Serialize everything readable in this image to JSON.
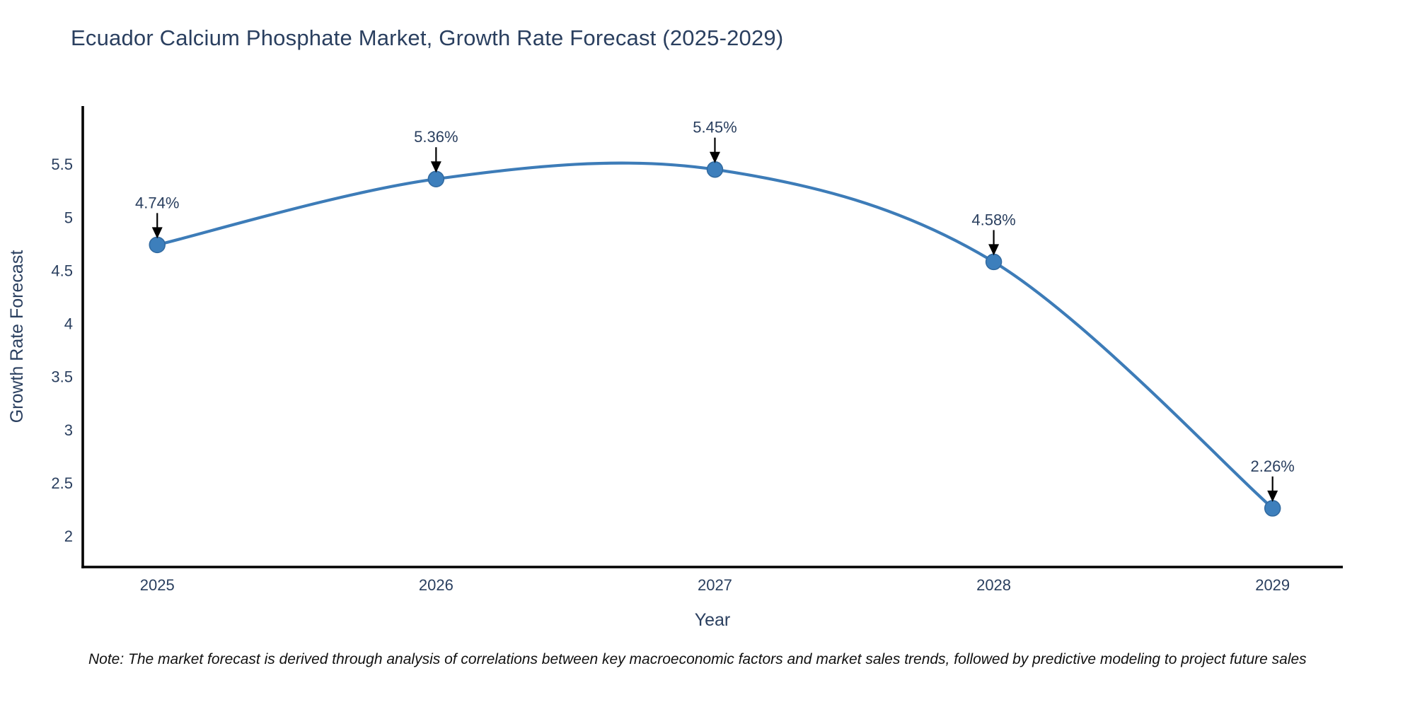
{
  "header": {
    "title": "Ecuador Calcium Phosphate Market, Growth Rate Forecast (2025-2029)"
  },
  "chart_data": {
    "type": "line",
    "title": "Ecuador Calcium Phosphate Market, Growth Rate Forecast (2025-2029)",
    "xlabel": "Year",
    "ylabel": "Growth Rate Forecast",
    "x": [
      2025,
      2026,
      2027,
      2028,
      2029
    ],
    "values": [
      4.74,
      5.36,
      5.45,
      4.58,
      2.26
    ],
    "point_labels": [
      "4.74%",
      "5.36%",
      "5.45%",
      "4.58%",
      "2.26%"
    ],
    "x_ticks": [
      "2025",
      "2026",
      "2027",
      "2028",
      "2029"
    ],
    "y_ticks": [
      5.5,
      5,
      4.5,
      4,
      3.5,
      3,
      2.5,
      2
    ],
    "xlim": [
      2024.733,
      2029.252
    ],
    "ylim": [
      1.707,
      6.047
    ],
    "grid": false,
    "legend_position": "none",
    "line_shape": "spline",
    "colors": {
      "line": "#3d7cb8",
      "marker_fill": "#3d7fbc",
      "marker_stroke": "#31699f",
      "axis_line": "#000000",
      "tick_label": "#2a3f5f",
      "annotation_text": "#2a3f5f",
      "annotation_arrow": "#000000"
    }
  },
  "footer": {
    "note": "Note: The market forecast is derived through analysis of correlations between key macroeconomic factors and market sales trends, followed by predictive modeling to project future sales"
  }
}
